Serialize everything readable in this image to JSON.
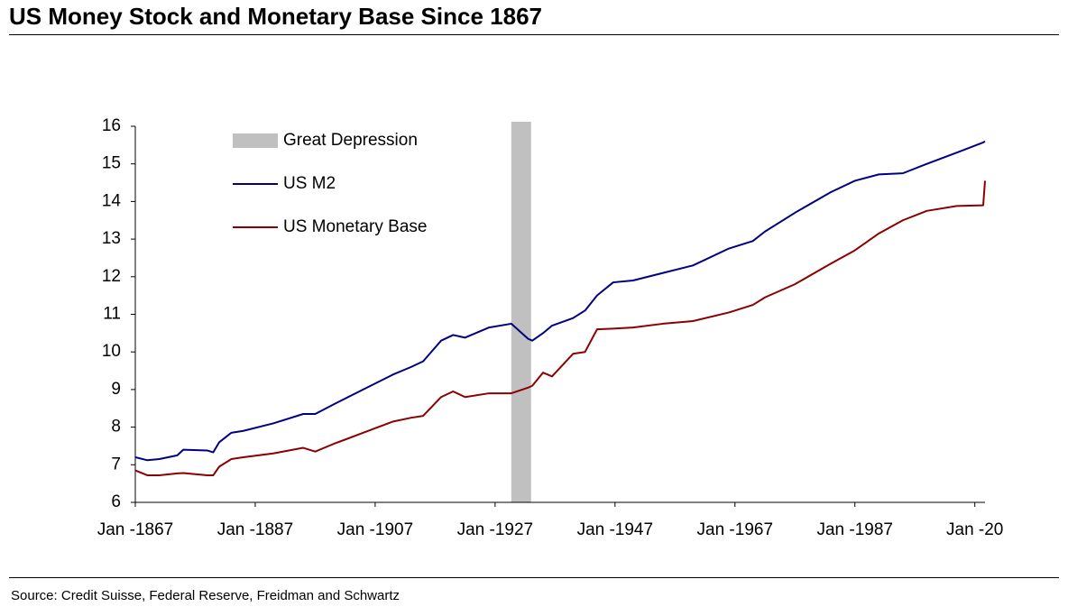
{
  "chart_data": {
    "type": "line",
    "title": "US Money Stock and Monetary Base Since 1867",
    "source": "Source: Credit Suisse, Federal Reserve, Freidman and Schwartz",
    "legend": "upper left",
    "x": [
      1867,
      1869,
      1871,
      1874,
      1875,
      1879,
      1880,
      1881,
      1883,
      1885,
      1890,
      1895,
      1897,
      1900,
      1905,
      1910,
      1913,
      1915,
      1918,
      1920,
      1922,
      1926,
      1929.7,
      1932.5,
      1933.2,
      1935,
      1936.5,
      1940,
      1942,
      1944,
      1946.7,
      1950,
      1955,
      1960,
      1966,
      1970,
      1972,
      1977,
      1983,
      1987,
      1991,
      1995,
      1999,
      2004,
      2008.4,
      2008.7
    ],
    "series": [
      {
        "name": "US M2",
        "color": "#000080",
        "values": [
          7.2,
          7.12,
          7.15,
          7.25,
          7.4,
          7.38,
          7.33,
          7.6,
          7.85,
          7.9,
          8.1,
          8.35,
          8.35,
          8.6,
          9.0,
          9.4,
          9.6,
          9.75,
          10.3,
          10.45,
          10.38,
          10.65,
          10.75,
          10.35,
          10.3,
          10.5,
          10.7,
          10.9,
          11.1,
          11.5,
          11.85,
          11.9,
          12.1,
          12.3,
          12.75,
          12.95,
          13.2,
          13.7,
          14.25,
          14.55,
          14.72,
          14.75,
          15.0,
          15.3,
          15.57,
          15.6
        ]
      },
      {
        "name": "US Monetary Base",
        "color": "#8b0000",
        "values": [
          6.85,
          6.72,
          6.72,
          6.77,
          6.78,
          6.72,
          6.72,
          6.95,
          7.15,
          7.2,
          7.3,
          7.45,
          7.35,
          7.55,
          7.85,
          8.15,
          8.25,
          8.3,
          8.8,
          8.95,
          8.8,
          8.9,
          8.9,
          9.05,
          9.1,
          9.45,
          9.35,
          9.95,
          10.0,
          10.6,
          10.62,
          10.65,
          10.75,
          10.82,
          11.05,
          11.25,
          11.45,
          11.8,
          12.35,
          12.7,
          13.15,
          13.5,
          13.75,
          13.88,
          13.9,
          14.55
        ]
      }
    ],
    "bands": [
      {
        "name": "Great Depression",
        "x": [
          1929.7,
          1933.0
        ],
        "color": "#c0c0c0"
      }
    ],
    "xlim": [
      1867,
      2008.7
    ],
    "xticks": [
      {
        "value": 1867,
        "label": "Jan -1867"
      },
      {
        "value": 1887,
        "label": "Jan -1887"
      },
      {
        "value": 1907,
        "label": "Jan -1907"
      },
      {
        "value": 1927,
        "label": "Jan -1927"
      },
      {
        "value": 1947,
        "label": "Jan -1947"
      },
      {
        "value": 1967,
        "label": "Jan -1967"
      },
      {
        "value": 1987,
        "label": "Jan -1987"
      },
      {
        "value": 2007,
        "label": "Jan -20"
      }
    ],
    "ylim": [
      6,
      16
    ],
    "yticks": [
      6,
      7,
      8,
      9,
      10,
      11,
      12,
      13,
      14,
      15,
      16
    ]
  }
}
